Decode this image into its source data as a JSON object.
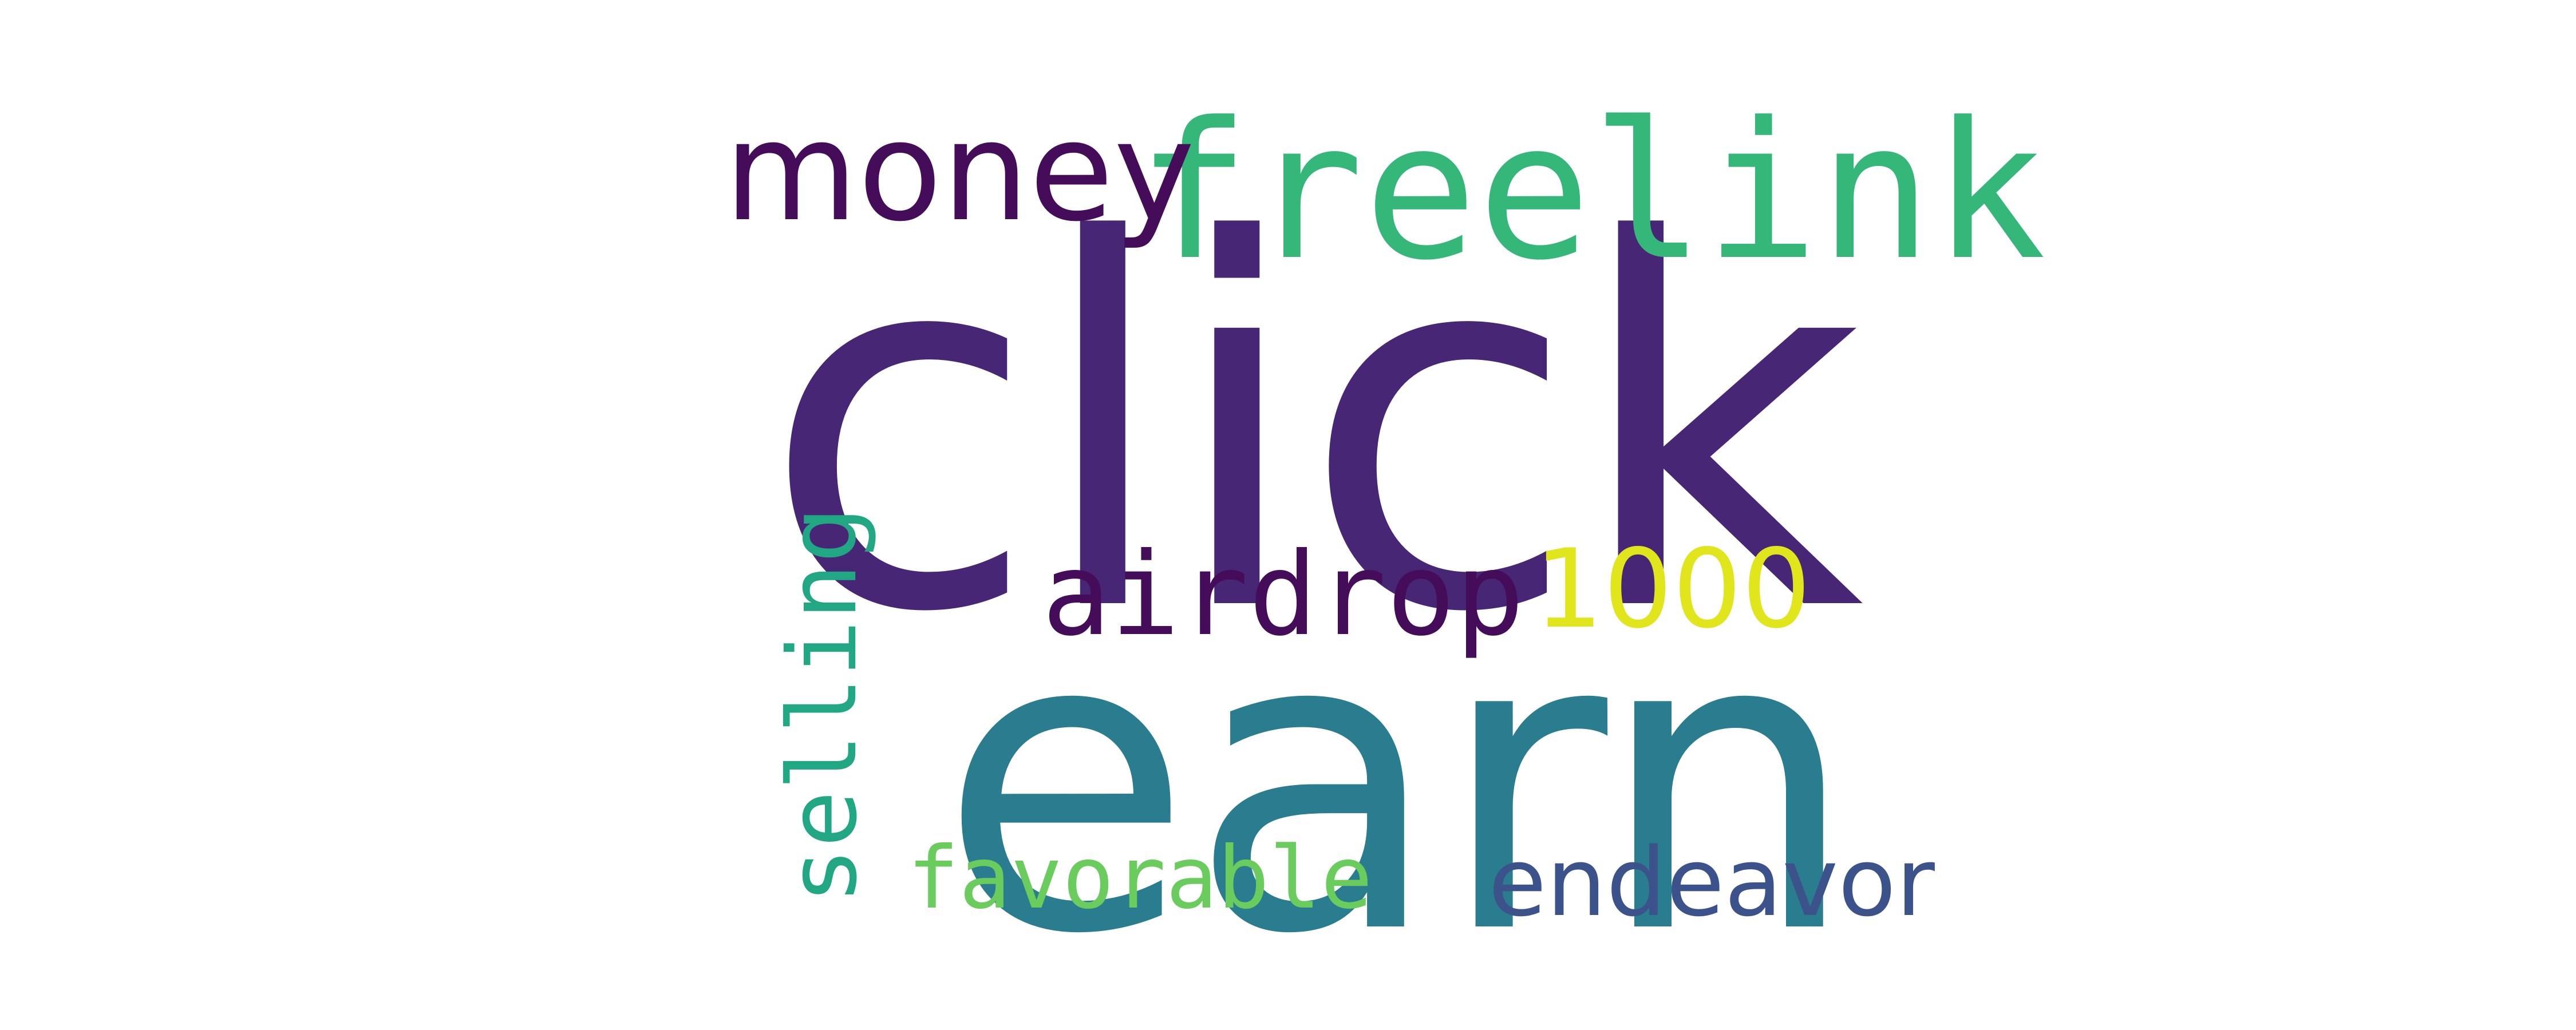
{
  "words": [
    {
      "key": "click",
      "text": "click",
      "color": "#472676",
      "style": "sans"
    },
    {
      "key": "earn",
      "text": "earn",
      "color": "#2a7d8f",
      "style": "sans"
    },
    {
      "key": "freelink",
      "text": "freelink",
      "color": "#35b779",
      "style": "mono"
    },
    {
      "key": "money",
      "text": "money",
      "color": "#440c59",
      "style": "sans"
    },
    {
      "key": "airdrop",
      "text": "airdrop",
      "color": "#440c59",
      "style": "mono"
    },
    {
      "key": "1000",
      "text": "1000",
      "color": "#e0e51c",
      "style": "sans"
    },
    {
      "key": "selling",
      "text": "selling",
      "color": "#22a785",
      "style": "mono",
      "orientation": "vertical"
    },
    {
      "key": "favorable",
      "text": "favorable",
      "color": "#6acc5c",
      "style": "mono"
    },
    {
      "key": "endeavor",
      "text": "endeavor",
      "color": "#3b528b",
      "style": "sans"
    }
  ]
}
